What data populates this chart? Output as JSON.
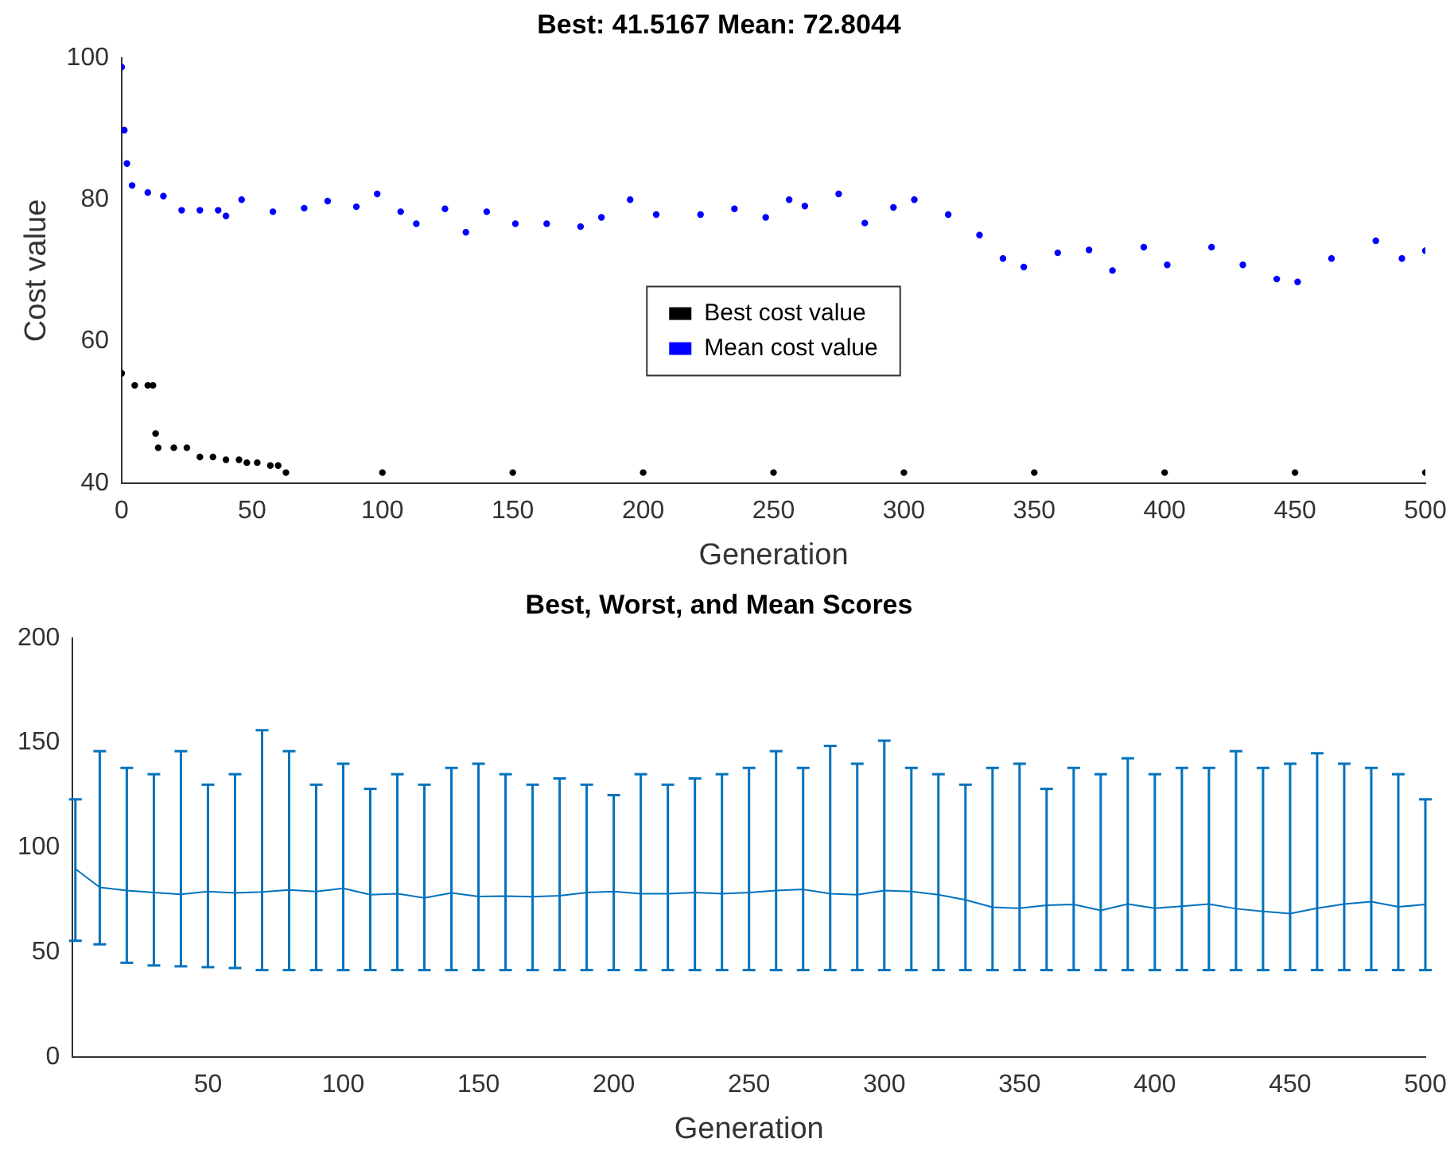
{
  "chart_data": [
    {
      "type": "scatter",
      "title": "Best: 41.5167 Mean: 72.8044",
      "xlabel": "Generation",
      "ylabel": "Cost value",
      "xlim": [
        0,
        500
      ],
      "xticks": [
        0,
        50,
        100,
        150,
        200,
        250,
        300,
        350,
        400,
        450,
        500
      ],
      "ylim": [
        40,
        100
      ],
      "yticks": [
        40,
        60,
        80,
        100
      ],
      "legend": "center",
      "marker": "circle",
      "series": [
        {
          "name": "Best cost value",
          "color": "#000000",
          "x": [
            0,
            5,
            10,
            12,
            13,
            14,
            20,
            25,
            30,
            35,
            40,
            45,
            48,
            52,
            57,
            60,
            63,
            100,
            150,
            200,
            250,
            300,
            350,
            400,
            450,
            500
          ],
          "values": [
            55.5,
            53.8,
            53.8,
            53.8,
            47,
            45,
            45,
            45,
            43.7,
            43.7,
            43.3,
            43.3,
            42.9,
            42.9,
            42.5,
            42.5,
            41.5,
            41.5,
            41.5,
            41.5,
            41.5,
            41.5,
            41.5,
            41.5,
            41.5,
            41.5
          ]
        },
        {
          "name": "Mean cost value",
          "color": "#0000ff",
          "x": [
            0,
            1,
            2,
            4,
            10,
            16,
            23,
            30,
            37,
            40,
            46,
            58,
            70,
            79,
            90,
            98,
            107,
            113,
            124,
            132,
            140,
            151,
            163,
            176,
            184,
            195,
            205,
            222,
            235,
            247,
            256,
            262,
            275,
            285,
            296,
            304,
            317,
            329,
            338,
            346,
            359,
            371,
            380,
            392,
            401,
            418,
            430,
            443,
            451,
            464,
            481,
            491,
            500
          ],
          "values": [
            98.7,
            89.8,
            85.1,
            82,
            81,
            80.5,
            78.5,
            78.5,
            78.5,
            77.7,
            80,
            78.3,
            78.8,
            79.8,
            79,
            80.8,
            78.3,
            76.6,
            78.7,
            75.4,
            78.3,
            76.6,
            76.6,
            76.2,
            77.5,
            80,
            77.9,
            77.9,
            78.7,
            77.5,
            80,
            79.1,
            80.8,
            76.7,
            78.9,
            80,
            77.9,
            75,
            71.7,
            70.5,
            72.5,
            72.9,
            70,
            73.3,
            70.8,
            73.3,
            70.8,
            68.8,
            68.4,
            71.7,
            74.2,
            71.7,
            72.8
          ]
        }
      ]
    },
    {
      "type": "line",
      "title": "Best, Worst, and Mean Scores",
      "xlabel": "Generation",
      "xlim": [
        0,
        500
      ],
      "xticks": [
        50,
        100,
        150,
        200,
        250,
        300,
        350,
        400,
        450,
        500
      ],
      "ylim": [
        0,
        200
      ],
      "yticks": [
        0,
        50,
        100,
        150,
        200
      ],
      "marker": "none",
      "x": [
        1,
        10,
        20,
        30,
        40,
        50,
        60,
        70,
        80,
        90,
        100,
        110,
        120,
        130,
        140,
        150,
        160,
        170,
        180,
        190,
        200,
        210,
        220,
        230,
        240,
        250,
        260,
        270,
        280,
        290,
        300,
        310,
        320,
        330,
        340,
        350,
        360,
        370,
        380,
        390,
        400,
        410,
        420,
        430,
        440,
        450,
        460,
        470,
        480,
        490,
        500
      ],
      "series": [
        {
          "color": "#0072bd",
          "values": [
            89.8,
            81,
            79.5,
            78.5,
            77.7,
            79,
            78.3,
            78.8,
            79.8,
            79,
            80.5,
            77.5,
            78,
            76,
            78.3,
            76.6,
            76.8,
            76.5,
            77,
            78.5,
            79,
            78,
            78,
            78.5,
            78,
            78.5,
            79.5,
            80,
            78,
            77.5,
            79.5,
            79,
            77.5,
            75,
            71.5,
            71,
            72.5,
            72.8,
            70,
            73,
            71,
            72,
            73,
            70.8,
            69.5,
            68.5,
            71,
            73,
            74.2,
            71.7,
            72.8
          ],
          "errors": [
            [
              55.5,
              123
            ],
            [
              53.8,
              146
            ],
            [
              45,
              138
            ],
            [
              43.7,
              135
            ],
            [
              43.3,
              146
            ],
            [
              42.9,
              130
            ],
            [
              42.5,
              135
            ],
            [
              41.5,
              156
            ],
            [
              41.5,
              146
            ],
            [
              41.5,
              130
            ],
            [
              41.5,
              140
            ],
            [
              41.5,
              128
            ],
            [
              41.5,
              135
            ],
            [
              41.5,
              130
            ],
            [
              41.5,
              138
            ],
            [
              41.5,
              140
            ],
            [
              41.5,
              135
            ],
            [
              41.5,
              130
            ],
            [
              41.5,
              133
            ],
            [
              41.5,
              130
            ],
            [
              41.5,
              125
            ],
            [
              41.5,
              135
            ],
            [
              41.5,
              130
            ],
            [
              41.5,
              133
            ],
            [
              41.5,
              135
            ],
            [
              41.5,
              138
            ],
            [
              41.5,
              146
            ],
            [
              41.5,
              138
            ],
            [
              41.5,
              148.5
            ],
            [
              41.5,
              140
            ],
            [
              41.5,
              151
            ],
            [
              41.5,
              138
            ],
            [
              41.5,
              135
            ],
            [
              41.5,
              130
            ],
            [
              41.5,
              138
            ],
            [
              41.5,
              140
            ],
            [
              41.5,
              128
            ],
            [
              41.5,
              138
            ],
            [
              41.5,
              135
            ],
            [
              41.5,
              142.6
            ],
            [
              41.5,
              135
            ],
            [
              41.5,
              138
            ],
            [
              41.5,
              138
            ],
            [
              41.5,
              146
            ],
            [
              41.5,
              138
            ],
            [
              41.5,
              140
            ],
            [
              41.5,
              145
            ],
            [
              41.5,
              140
            ],
            [
              41.5,
              138
            ],
            [
              41.5,
              135
            ],
            [
              41.5,
              123
            ]
          ]
        }
      ]
    }
  ]
}
